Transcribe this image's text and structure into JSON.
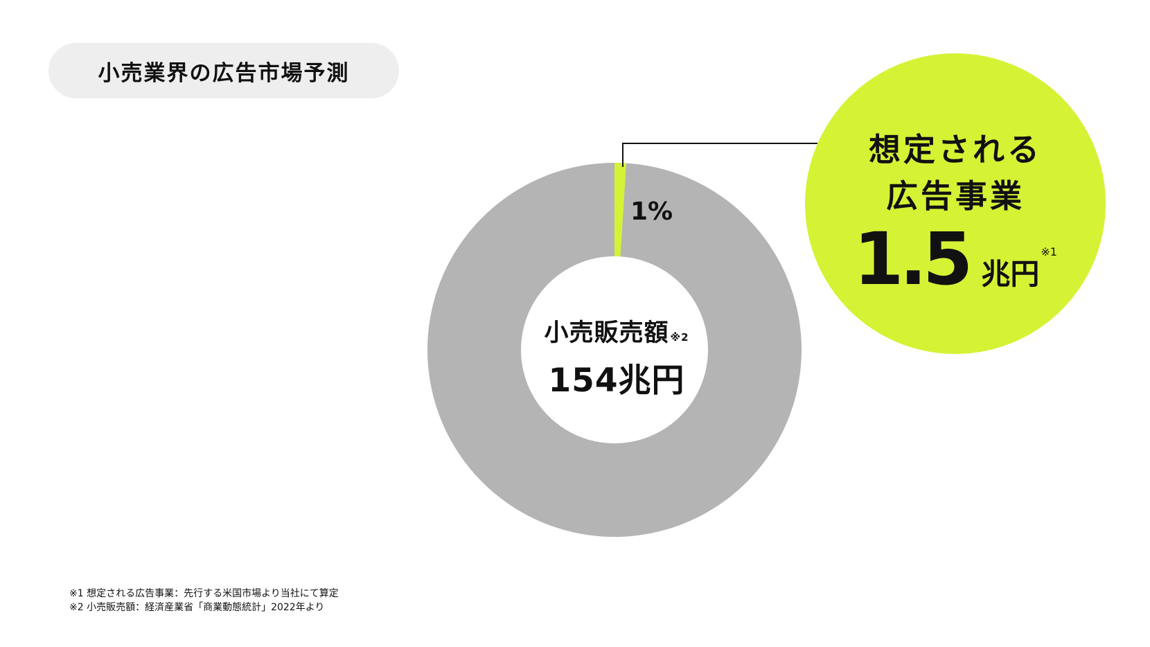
{
  "title": "小売業界の広告市場予測",
  "chart_data": {
    "type": "pie",
    "slices": [
      {
        "label": "想定される広告事業",
        "value": 1.5,
        "percent": 1,
        "color": "#d6f235"
      },
      {
        "label": "小売販売額",
        "value": 154,
        "percent": 99,
        "color": "#b4b4b4"
      }
    ],
    "highlight_label": "1%",
    "center": {
      "name": "小売販売額",
      "note": "※2",
      "value": "154兆円"
    }
  },
  "callout": {
    "line1": "想定される",
    "line2": "広告事業",
    "value": "1.5",
    "unit": "兆円",
    "note": "※1"
  },
  "colors": {
    "accent": "#d6f235",
    "ring": "#b4b4b4",
    "pill": "#eeeeee"
  },
  "footnotes": [
    "※1 想定される広告事業：先行する米国市場より当社にて算定",
    "※2 小売販売額：経済産業省「商業動態統計」2022年より"
  ]
}
